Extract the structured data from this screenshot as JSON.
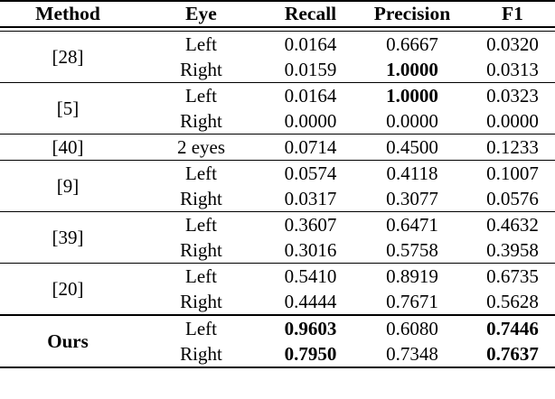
{
  "table": {
    "headers": [
      "Method",
      "Eye",
      "Recall",
      "Precision",
      "F1"
    ],
    "groups": [
      {
        "method": "[28]",
        "emphasized": false,
        "rows": [
          {
            "eye": "Left",
            "values": [
              "0.0164",
              "0.6667",
              "0.0320"
            ],
            "bold": [
              false,
              false,
              false
            ]
          },
          {
            "eye": "Right",
            "values": [
              "0.0159",
              "1.0000",
              "0.0313"
            ],
            "bold": [
              false,
              true,
              false
            ]
          }
        ]
      },
      {
        "method": "[5]",
        "emphasized": false,
        "rows": [
          {
            "eye": "Left",
            "values": [
              "0.0164",
              "1.0000",
              "0.0323"
            ],
            "bold": [
              false,
              true,
              false
            ]
          },
          {
            "eye": "Right",
            "values": [
              "0.0000",
              "0.0000",
              "0.0000"
            ],
            "bold": [
              false,
              false,
              false
            ]
          }
        ]
      },
      {
        "method": "[40]",
        "emphasized": false,
        "rows": [
          {
            "eye": "2 eyes",
            "values": [
              "0.0714",
              "0.4500",
              "0.1233"
            ],
            "bold": [
              false,
              false,
              false
            ]
          }
        ]
      },
      {
        "method": "[9]",
        "emphasized": false,
        "rows": [
          {
            "eye": "Left",
            "values": [
              "0.0574",
              "0.4118",
              "0.1007"
            ],
            "bold": [
              false,
              false,
              false
            ]
          },
          {
            "eye": "Right",
            "values": [
              "0.0317",
              "0.3077",
              "0.0576"
            ],
            "bold": [
              false,
              false,
              false
            ]
          }
        ]
      },
      {
        "method": "[39]",
        "emphasized": false,
        "rows": [
          {
            "eye": "Left",
            "values": [
              "0.3607",
              "0.6471",
              "0.4632"
            ],
            "bold": [
              false,
              false,
              false
            ]
          },
          {
            "eye": "Right",
            "values": [
              "0.3016",
              "0.5758",
              "0.3958"
            ],
            "bold": [
              false,
              false,
              false
            ]
          }
        ]
      },
      {
        "method": "[20]",
        "emphasized": false,
        "rows": [
          {
            "eye": "Left",
            "values": [
              "0.5410",
              "0.8919",
              "0.6735"
            ],
            "bold": [
              false,
              false,
              false
            ]
          },
          {
            "eye": "Right",
            "values": [
              "0.4444",
              "0.7671",
              "0.5628"
            ],
            "bold": [
              false,
              false,
              false
            ]
          }
        ]
      },
      {
        "method": "Ours",
        "emphasized": true,
        "rows": [
          {
            "eye": "Left",
            "values": [
              "0.9603",
              "0.6080",
              "0.7446"
            ],
            "bold": [
              true,
              false,
              true
            ]
          },
          {
            "eye": "Right",
            "values": [
              "0.7950",
              "0.7348",
              "0.7637"
            ],
            "bold": [
              true,
              false,
              true
            ]
          }
        ]
      }
    ],
    "colors": {
      "text": "#000000",
      "rule": "#000000",
      "background": "#ffffff"
    }
  }
}
